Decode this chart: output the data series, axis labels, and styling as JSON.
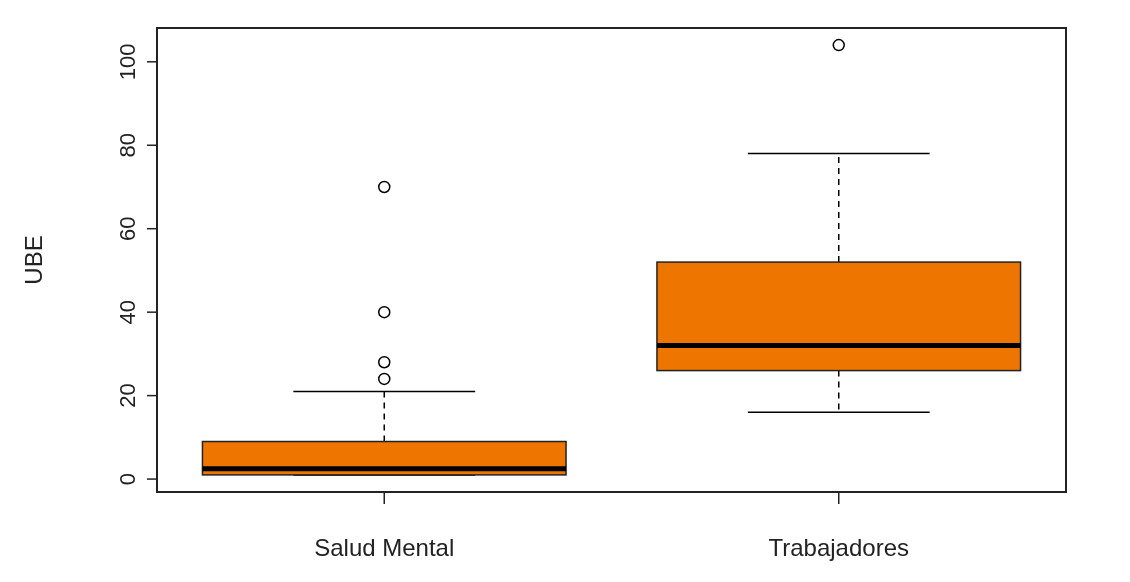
{
  "chart_data": {
    "type": "box",
    "ylabel": "UBE",
    "categories": [
      "Salud Mental",
      "Trabajadores"
    ],
    "color": "#ee7600",
    "ylim": [
      -3.1,
      108.1
    ],
    "yticks": [
      0,
      20,
      40,
      60,
      80,
      100
    ],
    "grid": false,
    "boxes": [
      {
        "low": 1,
        "q1": 1,
        "median": 2.5,
        "q3": 9,
        "high": 21,
        "outliers": [
          24,
          28,
          40,
          70
        ]
      },
      {
        "low": 16,
        "q1": 26,
        "median": 32,
        "q3": 52,
        "high": 78,
        "outliers": [
          104
        ]
      }
    ]
  }
}
